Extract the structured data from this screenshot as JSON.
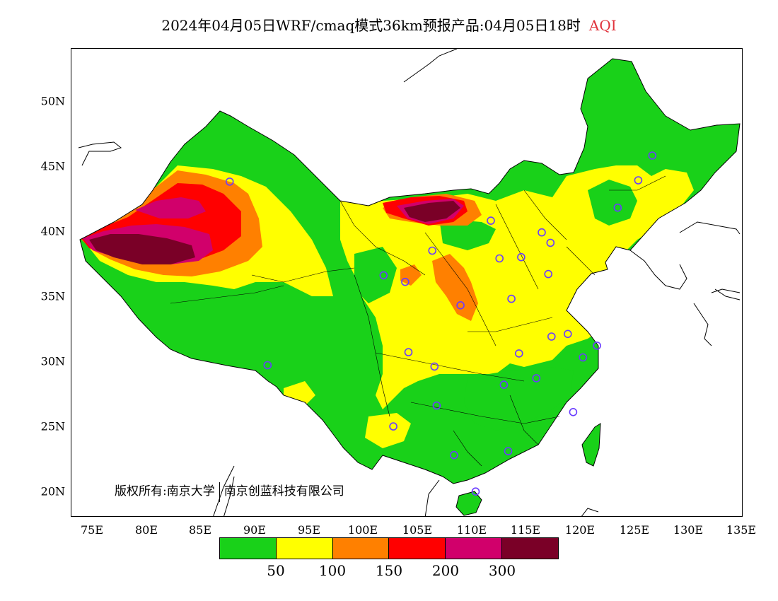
{
  "header": {
    "title": "2024年04月05日WRF/cmaq模式36km预报产品:04月05日18时",
    "variable": "AQI"
  },
  "axes": {
    "lat_labels": [
      "50N",
      "45N",
      "40N",
      "35N",
      "30N",
      "25N",
      "20N"
    ],
    "lon_labels": [
      "75E",
      "80E",
      "85E",
      "90E",
      "95E",
      "100E",
      "105E",
      "110E",
      "115E",
      "120E",
      "125E",
      "130E",
      "135E"
    ],
    "lon_range": [
      73,
      135
    ],
    "lat_range": [
      18,
      54
    ]
  },
  "copyright": {
    "part1": "版权所有:南京大学",
    "part2": "南京创蓝科技有限公司"
  },
  "legend": {
    "colors": [
      "#19d119",
      "#ffff00",
      "#ff8000",
      "#ff0000",
      "#d1006b",
      "#7a0027"
    ],
    "labels": [
      "50",
      "100",
      "150",
      "200",
      "300"
    ]
  },
  "colors": {
    "good": "#19d119",
    "moderate": "#ffff00",
    "usg": "#ff8000",
    "unhealthy": "#ff0000",
    "very_unhealthy": "#d1006b",
    "hazardous": "#7a0027",
    "station_marker": "#6a3cff"
  },
  "stations": [
    {
      "lon": 87.6,
      "lat": 43.8
    },
    {
      "lon": 126.6,
      "lat": 45.8
    },
    {
      "lon": 125.3,
      "lat": 43.9
    },
    {
      "lon": 123.4,
      "lat": 41.8
    },
    {
      "lon": 111.7,
      "lat": 40.8
    },
    {
      "lon": 116.4,
      "lat": 39.9
    },
    {
      "lon": 117.2,
      "lat": 39.1
    },
    {
      "lon": 106.3,
      "lat": 38.5
    },
    {
      "lon": 112.5,
      "lat": 37.9
    },
    {
      "lon": 114.5,
      "lat": 38.0
    },
    {
      "lon": 101.8,
      "lat": 36.6
    },
    {
      "lon": 103.8,
      "lat": 36.1
    },
    {
      "lon": 117.0,
      "lat": 36.7
    },
    {
      "lon": 108.9,
      "lat": 34.3
    },
    {
      "lon": 113.6,
      "lat": 34.8
    },
    {
      "lon": 117.3,
      "lat": 31.9
    },
    {
      "lon": 118.8,
      "lat": 32.1
    },
    {
      "lon": 121.5,
      "lat": 31.2
    },
    {
      "lon": 120.2,
      "lat": 30.3
    },
    {
      "lon": 114.3,
      "lat": 30.6
    },
    {
      "lon": 104.1,
      "lat": 30.7
    },
    {
      "lon": 106.5,
      "lat": 29.6
    },
    {
      "lon": 91.1,
      "lat": 29.7
    },
    {
      "lon": 112.9,
      "lat": 28.2
    },
    {
      "lon": 115.9,
      "lat": 28.7
    },
    {
      "lon": 106.7,
      "lat": 26.6
    },
    {
      "lon": 119.3,
      "lat": 26.1
    },
    {
      "lon": 102.7,
      "lat": 25.0
    },
    {
      "lon": 108.3,
      "lat": 22.8
    },
    {
      "lon": 113.3,
      "lat": 23.1
    },
    {
      "lon": 110.3,
      "lat": 20.0
    }
  ]
}
